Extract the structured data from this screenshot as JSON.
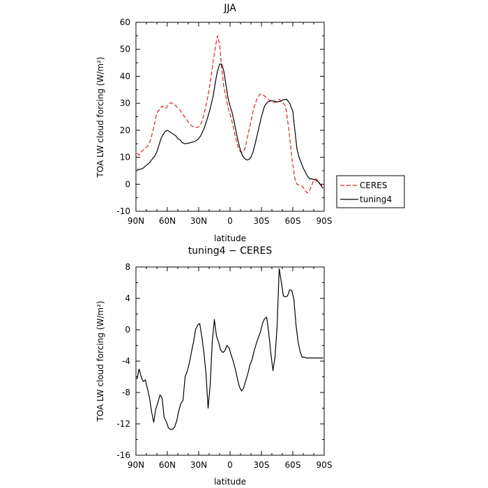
{
  "chart_data": [
    {
      "type": "line",
      "title": "JJA",
      "xlabel": "latitude",
      "ylabel": "TOA LW cloud forcing (W/m²)",
      "xlim": [
        90,
        -90
      ],
      "ylim": [
        -10,
        60
      ],
      "xticks": [
        {
          "v": 90,
          "label": "90N"
        },
        {
          "v": 60,
          "label": "60N"
        },
        {
          "v": 30,
          "label": "30N"
        },
        {
          "v": 0,
          "label": "0"
        },
        {
          "v": -30,
          "label": "30S"
        },
        {
          "v": -60,
          "label": "60S"
        },
        {
          "v": -90,
          "label": "90S"
        }
      ],
      "yticks": [
        {
          "v": 60,
          "label": "60"
        },
        {
          "v": 50,
          "label": "50"
        },
        {
          "v": 40,
          "label": "40"
        },
        {
          "v": 30,
          "label": "30"
        },
        {
          "v": 20,
          "label": "20"
        },
        {
          "v": 10,
          "label": "10"
        },
        {
          "v": 0,
          "label": "0"
        },
        {
          "v": -10,
          "label": "-10"
        }
      ],
      "legend_position": "right",
      "series": [
        {
          "name": "CERES",
          "color": "#e02020",
          "dash": "dashed",
          "x": [
            89,
            87,
            85,
            82,
            79,
            76,
            73,
            70,
            67,
            65,
            63,
            61,
            59,
            57,
            55,
            53,
            51,
            48,
            45,
            42,
            39,
            36,
            33,
            30,
            27,
            24,
            21,
            18,
            16,
            14,
            12,
            10,
            8,
            6,
            4,
            2,
            0,
            -2,
            -4,
            -6,
            -8,
            -10,
            -12,
            -14,
            -17,
            -20,
            -23,
            -26,
            -29,
            -32,
            -35,
            -38,
            -41,
            -44,
            -47,
            -50,
            -53,
            -56,
            -59,
            -62,
            -64,
            -66,
            -68,
            -70,
            -72,
            -74,
            -76,
            -78,
            -80,
            -82,
            -84,
            -86,
            -88,
            -89
          ],
          "y": [
            11.5,
            10.8,
            12,
            13,
            14,
            16.5,
            21,
            26.5,
            28,
            29,
            28.3,
            28.2,
            29.5,
            30.2,
            30,
            29.5,
            28.7,
            27.5,
            25.8,
            24.2,
            22.5,
            21.5,
            21,
            21.2,
            23,
            27.5,
            33,
            40,
            46,
            51,
            55,
            52,
            43,
            36,
            32.5,
            28.5,
            26,
            23,
            19.5,
            16,
            13.5,
            12,
            11.8,
            13,
            18,
            23.5,
            28.5,
            32,
            33.5,
            33,
            32,
            31,
            30.3,
            30.5,
            31.5,
            30.5,
            29,
            21,
            10,
            2,
            0,
            -0.2,
            -0.5,
            -1.2,
            -2.5,
            -3.2,
            -2.3,
            -0.5,
            1.5,
            2,
            1.2,
            0.2,
            -0.5,
            -0.7
          ]
        },
        {
          "name": "tuning4",
          "color": "#000000",
          "dash": "solid",
          "x": [
            89,
            86,
            83,
            80,
            77,
            74,
            72,
            70,
            68,
            66,
            64,
            62,
            60,
            58,
            56,
            54,
            52,
            50,
            48,
            46,
            43,
            40,
            37,
            34,
            31,
            28,
            25,
            22,
            19,
            16,
            14,
            12,
            10,
            8,
            6,
            4,
            2,
            0,
            -2,
            -4,
            -6,
            -8,
            -10,
            -12,
            -14,
            -16,
            -18,
            -20,
            -22,
            -24,
            -27,
            -30,
            -33,
            -36,
            -39,
            -42,
            -45,
            -48,
            -51,
            -54,
            -57,
            -60,
            -62,
            -64,
            -66,
            -68,
            -70,
            -72,
            -74,
            -76,
            -78,
            -80,
            -82,
            -84,
            -86,
            -88,
            -89
          ],
          "y": [
            5.5,
            5.5,
            6,
            7,
            8,
            9.5,
            10.5,
            12,
            14.5,
            17,
            18.5,
            19.5,
            20,
            19.5,
            19,
            18.5,
            18,
            17,
            16.5,
            15.5,
            15,
            15.2,
            15.5,
            15.8,
            16.5,
            18,
            20.5,
            24,
            28,
            33,
            38,
            42,
            44.5,
            44.5,
            42,
            37,
            32,
            29,
            26.5,
            23,
            19,
            15.5,
            12.5,
            10.5,
            9.5,
            9,
            9.2,
            10,
            12,
            15,
            20,
            25,
            29,
            30.5,
            31,
            30.8,
            30.5,
            30.7,
            31.3,
            31.5,
            30,
            27,
            20,
            13,
            10,
            8,
            6,
            4.5,
            3,
            2,
            2,
            1.8,
            1.5,
            1,
            0,
            -1,
            -1.5
          ]
        }
      ]
    },
    {
      "type": "line",
      "title": "tuning4 − CERES",
      "xlabel": "latitude",
      "ylabel": "TOA LW cloud forcing (W/m²)",
      "xlim": [
        90,
        -90
      ],
      "ylim": [
        -16,
        8
      ],
      "xticks": [
        {
          "v": 90,
          "label": "90N"
        },
        {
          "v": 60,
          "label": "60N"
        },
        {
          "v": 30,
          "label": "30N"
        },
        {
          "v": 0,
          "label": "0"
        },
        {
          "v": -30,
          "label": "30S"
        },
        {
          "v": -60,
          "label": "60S"
        },
        {
          "v": -90,
          "label": "90S"
        }
      ],
      "yticks": [
        {
          "v": 8,
          "label": "8"
        },
        {
          "v": 4,
          "label": "4"
        },
        {
          "v": 0,
          "label": "0"
        },
        {
          "v": -4,
          "label": "-4"
        },
        {
          "v": -8,
          "label": "-8"
        },
        {
          "v": -12,
          "label": "-12"
        },
        {
          "v": -16,
          "label": "-16"
        }
      ],
      "series": [
        {
          "name": "",
          "color": "#000000",
          "dash": "solid",
          "x": [
            89,
            87,
            85,
            83,
            81,
            79,
            77,
            75,
            73,
            71,
            69,
            67,
            65,
            63,
            61,
            59,
            57,
            55,
            53,
            51,
            49,
            47,
            45,
            43,
            41,
            39,
            37,
            35,
            33,
            31,
            29,
            27,
            25,
            23,
            21,
            19,
            17,
            15,
            13,
            11,
            9,
            7,
            5,
            3,
            1,
            -1,
            -3,
            -5,
            -7,
            -9,
            -11,
            -13,
            -15,
            -17,
            -19,
            -21,
            -23,
            -25,
            -27,
            -29,
            -31,
            -33,
            -35,
            -37,
            -39,
            -41,
            -43,
            -45,
            -47,
            -49,
            -51,
            -53,
            -55,
            -57,
            -59,
            -61,
            -63,
            -65,
            -67,
            -69,
            -71,
            -73,
            -75,
            -77,
            -79,
            -81,
            -83,
            -85,
            -87,
            -88,
            -89
          ],
          "y": [
            -6.3,
            -5,
            -6,
            -6.6,
            -6.4,
            -7.5,
            -8.7,
            -10.5,
            -11.8,
            -10.1,
            -9.3,
            -8.3,
            -8.7,
            -11.2,
            -11.7,
            -12.5,
            -12.7,
            -12.7,
            -12.4,
            -11.6,
            -10.3,
            -9.4,
            -9,
            -6,
            -5.3,
            -4.3,
            -2.9,
            -1.6,
            0,
            0.6,
            0.8,
            -0.9,
            -2.9,
            -5.6,
            -10,
            -7,
            -1.5,
            1.3,
            -0.8,
            -1.6,
            -2.6,
            -2.9,
            -2.7,
            -2,
            -2.3,
            -3.2,
            -4,
            -5,
            -6.2,
            -7.3,
            -7.8,
            -7.4,
            -6.5,
            -5.6,
            -4.5,
            -3.8,
            -2.7,
            -1.8,
            -1,
            -0.3,
            0.8,
            1.4,
            1.6,
            -0.4,
            -3,
            -5.2,
            -3.5,
            0.5,
            7.8,
            6.1,
            4.3,
            4.2,
            4.3,
            5.1,
            5,
            3.9,
            0.7,
            -1.5,
            -2.8,
            -3.5,
            -3.5,
            -3.6,
            -3.6,
            -3.6,
            -3.6,
            -3.6,
            -3.6,
            -3.6,
            -3.6,
            -3.6,
            -3.6
          ]
        }
      ]
    }
  ]
}
